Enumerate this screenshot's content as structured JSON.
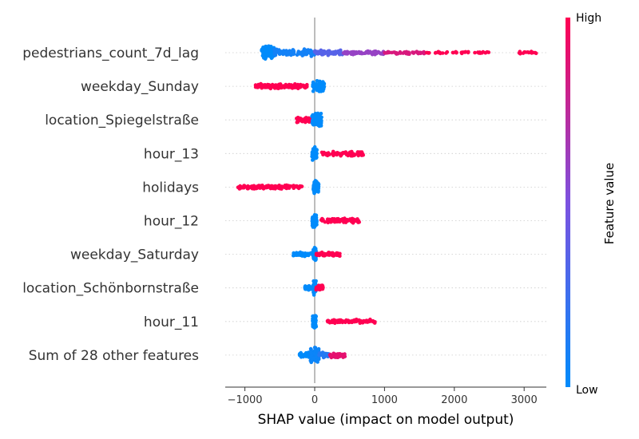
{
  "chart_data": {
    "type": "scatter",
    "subtype": "shap-beeswarm",
    "xlabel": "SHAP value (impact on model output)",
    "xlim": [
      -1280,
      3400
    ],
    "x_ticks": [
      -1000,
      0,
      1000,
      2000,
      3000
    ],
    "x_tick_labels": [
      "−1000",
      "0",
      "1000",
      "2000",
      "3000"
    ],
    "colorbar": {
      "label": "Feature value",
      "high_label": "High",
      "low_label": "Low",
      "low_color": "#008bfb",
      "mid_color": "#7c52e0",
      "high_color": "#ff0052"
    },
    "features": [
      {
        "name": "pedestrians_count_7d_lag",
        "groups": [
          {
            "min": -760,
            "max": -580,
            "n": 95,
            "spread": 0.95,
            "value": 0.0
          },
          {
            "min": -580,
            "max": 0,
            "n": 95,
            "spread": 0.45,
            "value": 0.08
          },
          {
            "min": 0,
            "max": 400,
            "n": 75,
            "spread": 0.3,
            "value": 0.35
          },
          {
            "min": 400,
            "max": 1000,
            "n": 70,
            "spread": 0.25,
            "value": 0.6
          },
          {
            "min": 1000,
            "max": 1600,
            "n": 55,
            "spread": 0.2,
            "value": 0.85
          },
          {
            "min": 1600,
            "max": 2520,
            "n": 40,
            "spread": 0.12,
            "value": 1.0
          },
          {
            "min": 2900,
            "max": 3180,
            "n": 14,
            "spread": 0.15,
            "value": 1.0
          }
        ]
      },
      {
        "name": "weekday_Sunday",
        "groups": [
          {
            "min": -850,
            "max": -110,
            "n": 120,
            "spread": 0.3,
            "value": 1.0
          },
          {
            "min": -30,
            "max": 140,
            "n": 80,
            "spread": 0.7,
            "value": 0.0
          }
        ]
      },
      {
        "name": "location_Spiegelstraße",
        "groups": [
          {
            "min": -260,
            "max": -30,
            "n": 55,
            "spread": 0.35,
            "value": 1.0
          },
          {
            "min": -40,
            "max": 100,
            "n": 80,
            "spread": 0.85,
            "value": 0.0
          }
        ]
      },
      {
        "name": "hour_13",
        "groups": [
          {
            "min": -40,
            "max": 30,
            "n": 70,
            "spread": 0.8,
            "value": 0.0
          },
          {
            "min": 100,
            "max": 700,
            "n": 70,
            "spread": 0.3,
            "value": 1.0
          }
        ]
      },
      {
        "name": "holidays",
        "groups": [
          {
            "min": -1100,
            "max": -180,
            "n": 130,
            "spread": 0.25,
            "value": 1.0
          },
          {
            "min": -20,
            "max": 60,
            "n": 65,
            "spread": 0.85,
            "value": 0.0
          }
        ]
      },
      {
        "name": "hour_12",
        "groups": [
          {
            "min": -40,
            "max": 30,
            "n": 70,
            "spread": 0.8,
            "value": 0.0
          },
          {
            "min": 80,
            "max": 640,
            "n": 70,
            "spread": 0.3,
            "value": 1.0
          }
        ]
      },
      {
        "name": "weekday_Saturday",
        "groups": [
          {
            "min": -320,
            "max": -30,
            "n": 50,
            "spread": 0.25,
            "value": 0.0
          },
          {
            "min": -20,
            "max": 20,
            "n": 60,
            "spread": 0.9,
            "value": 0.0
          },
          {
            "min": 20,
            "max": 360,
            "n": 60,
            "spread": 0.25,
            "value": 1.0
          }
        ]
      },
      {
        "name": "location_Schönbornstraße",
        "groups": [
          {
            "min": -140,
            "max": -10,
            "n": 40,
            "spread": 0.3,
            "value": 0.0
          },
          {
            "min": -20,
            "max": 20,
            "n": 60,
            "spread": 0.9,
            "value": 0.0
          },
          {
            "min": 20,
            "max": 120,
            "n": 35,
            "spread": 0.35,
            "value": 1.0
          }
        ]
      },
      {
        "name": "hour_11",
        "groups": [
          {
            "min": -30,
            "max": 20,
            "n": 70,
            "spread": 0.8,
            "value": 0.0
          },
          {
            "min": 180,
            "max": 870,
            "n": 80,
            "spread": 0.25,
            "value": 1.0
          }
        ]
      },
      {
        "name": "Sum of 28 other features",
        "groups": [
          {
            "min": -220,
            "max": -60,
            "n": 45,
            "spread": 0.35,
            "value": 0.0
          },
          {
            "min": -60,
            "max": 60,
            "n": 110,
            "spread": 0.95,
            "value": 0.05
          },
          {
            "min": 60,
            "max": 200,
            "n": 40,
            "spread": 0.35,
            "value": 0.15
          },
          {
            "min": 200,
            "max": 440,
            "n": 35,
            "spread": 0.3,
            "value": 0.9
          }
        ]
      }
    ]
  }
}
